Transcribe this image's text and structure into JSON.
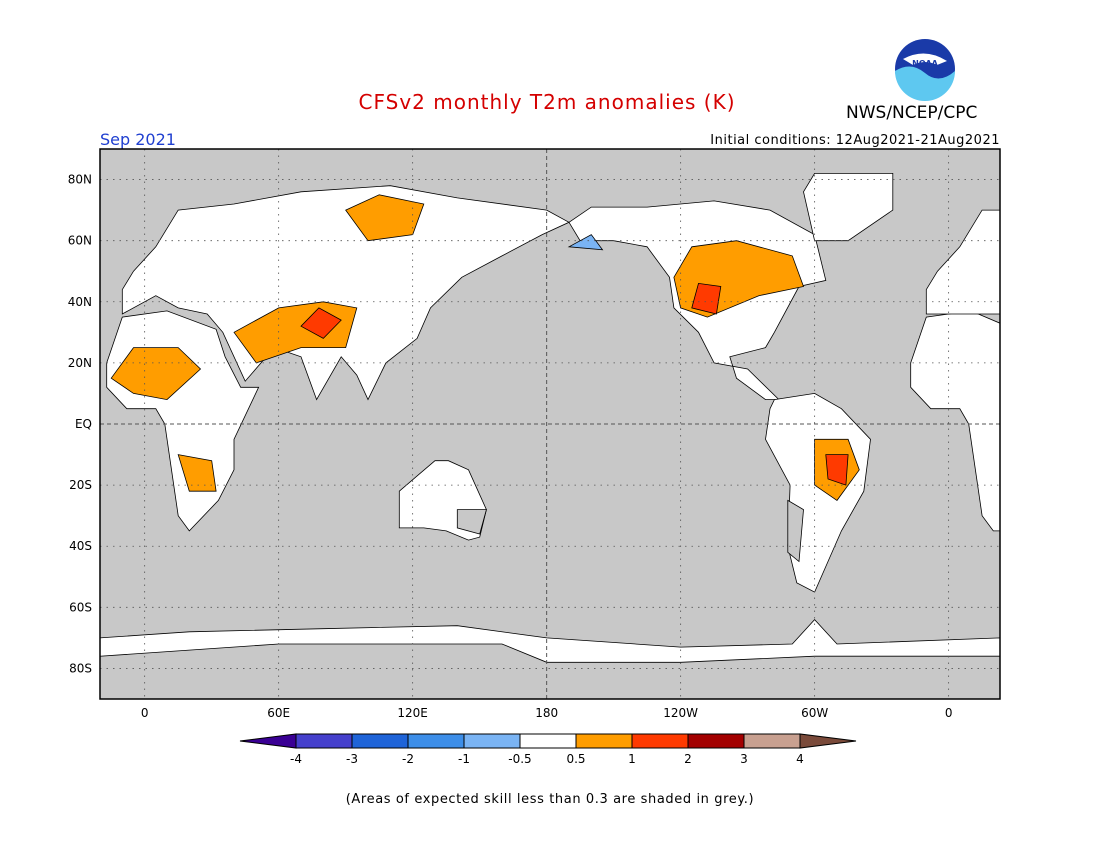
{
  "header": {
    "title": "CFSv2 monthly T2m anomalies (K)",
    "organization": "NWS/NCEP/CPC",
    "logo_text": "NOAA",
    "month_label": "Sep 2021",
    "initial_conditions": "Initial conditions: 12Aug2021-21Aug2021"
  },
  "map": {
    "lat_labels": [
      "80N",
      "60N",
      "40N",
      "20N",
      "EQ",
      "20S",
      "40S",
      "60S",
      "80S"
    ],
    "lon_labels": [
      "0",
      "60E",
      "120E",
      "180",
      "120W",
      "60W",
      "0"
    ],
    "lat_values": [
      80,
      60,
      40,
      20,
      0,
      -20,
      -40,
      -60,
      -80
    ],
    "lon_values": [
      0,
      60,
      120,
      180,
      240,
      300,
      360
    ],
    "lon_range": [
      -20,
      383
    ],
    "lat_range": [
      -90,
      90
    ],
    "ocean_color": "#c8c8c8"
  },
  "colorbar": {
    "tick_labels": [
      "-4",
      "-3",
      "-2",
      "-1",
      "-0.5",
      "0.5",
      "1",
      "2",
      "3",
      "4"
    ],
    "colors": [
      "#3a0094",
      "#4540cc",
      "#1f64d8",
      "#3d8ee8",
      "#7ab4f4",
      "#ffffff",
      "#ff9d00",
      "#ff3a00",
      "#a30000",
      "#c8a090",
      "#7a4a3a"
    ]
  },
  "footnote": "(Areas of expected skill less than 0.3 are shaded in grey.)"
}
